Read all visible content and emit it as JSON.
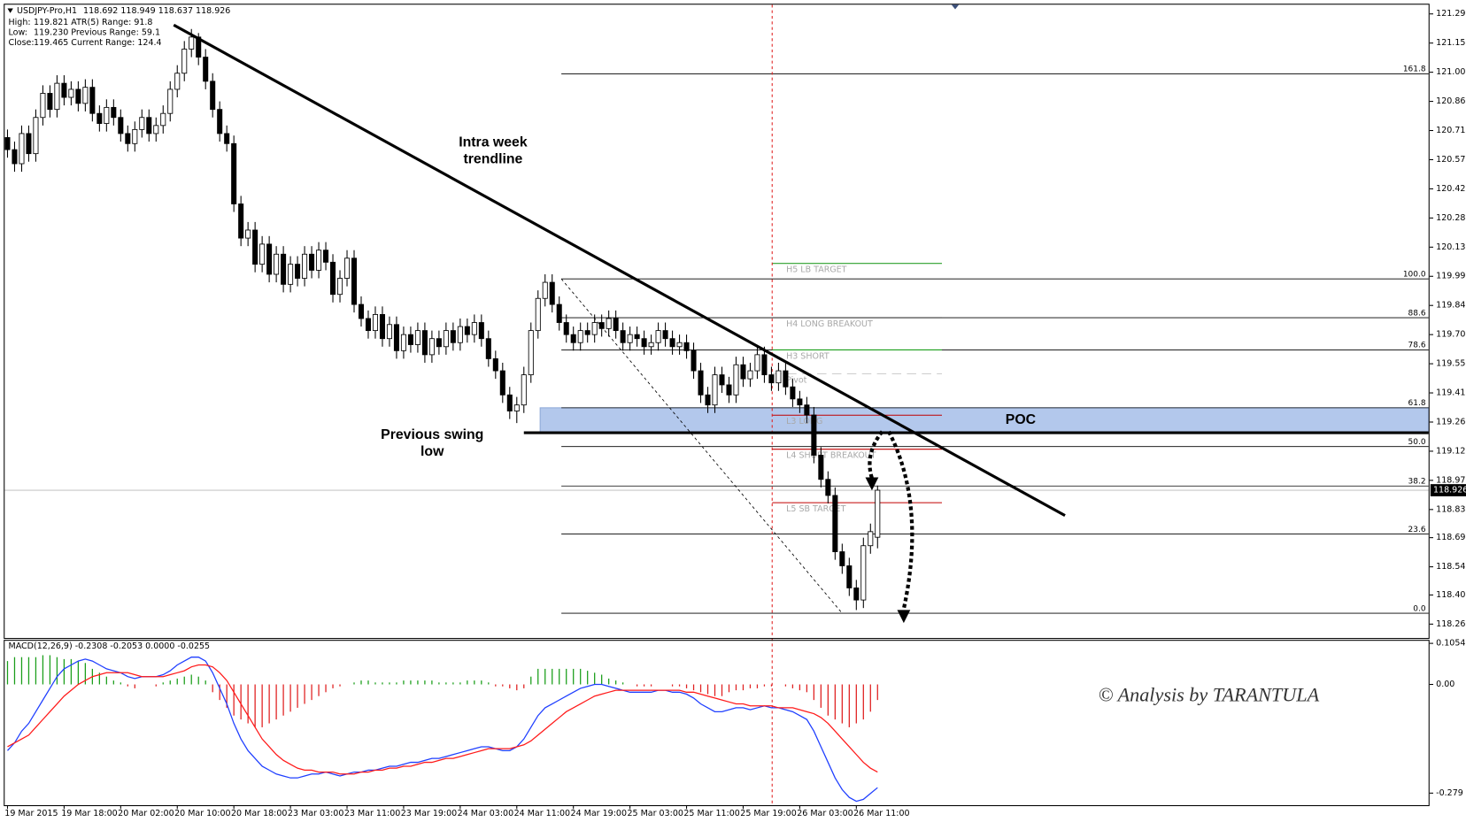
{
  "chart_data": {
    "type": "candlestick",
    "info_header": {
      "symbol": "USDJPY-Pro,H1",
      "ohlc": "118.692 118.949 118.637 118.926"
    },
    "info": [
      {
        "label": "High:",
        "value": "119.821",
        "extra": "ATR(5) Range: 91.8"
      },
      {
        "label": "Low:",
        "value": "119.230",
        "extra": "Previous Range: 59.1"
      },
      {
        "label": "Close:",
        "value": "119.465",
        "extra": "Current Range: 124.4"
      }
    ],
    "categories": [
      "19 Mar 2015",
      null,
      null,
      null,
      null,
      null,
      null,
      null,
      "19 Mar 18:00",
      null,
      null,
      null,
      null,
      null,
      null,
      null,
      "20 Mar 02:00",
      null,
      null,
      null,
      null,
      null,
      null,
      null,
      "20 Mar 10:00",
      null,
      null,
      null,
      null,
      null,
      null,
      null,
      "20 Mar 18:00",
      null,
      null,
      null,
      null,
      null,
      null,
      null,
      "23 Mar 03:00",
      null,
      null,
      null,
      null,
      null,
      null,
      null,
      "23 Mar 11:00",
      null,
      null,
      null,
      null,
      null,
      null,
      null,
      "23 Mar 19:00",
      null,
      null,
      null,
      null,
      null,
      null,
      null,
      "24 Mar 03:00",
      null,
      null,
      null,
      null,
      null,
      null,
      null,
      "24 Mar 11:00",
      null,
      null,
      null,
      null,
      null,
      null,
      null,
      "24 Mar 19:00",
      null,
      null,
      null,
      null,
      null,
      null,
      null,
      "25 Mar 03:00",
      null,
      null,
      null,
      null,
      null,
      null,
      null,
      "25 Mar 11:00",
      null,
      null,
      null,
      null,
      null,
      null,
      null,
      "25 Mar 19:00",
      null,
      null,
      null,
      null,
      null,
      null,
      null,
      "26 Mar 03:00",
      null,
      null,
      null,
      null,
      null,
      null,
      null,
      "26 Mar 11:00",
      null,
      null,
      null
    ],
    "open": [
      120.68,
      120.62,
      120.55,
      120.7,
      120.6,
      120.78,
      120.9,
      120.82,
      120.95,
      120.88,
      120.92,
      120.85,
      120.93,
      120.8,
      120.75,
      120.83,
      120.78,
      120.7,
      120.65,
      120.72,
      120.78,
      120.7,
      120.74,
      120.8,
      120.92,
      121.0,
      121.12,
      121.18,
      121.08,
      120.96,
      120.82,
      120.7,
      120.65,
      120.35,
      120.18,
      120.22,
      120.05,
      120.15,
      120.0,
      120.1,
      119.95,
      120.05,
      119.98,
      120.1,
      120.02,
      120.12,
      120.06,
      119.9,
      119.98,
      120.08,
      119.85,
      119.78,
      119.72,
      119.8,
      119.68,
      119.75,
      119.62,
      119.7,
      119.65,
      119.72,
      119.6,
      119.68,
      119.64,
      119.72,
      119.66,
      119.74,
      119.7,
      119.76,
      119.68,
      119.58,
      119.52,
      119.4,
      119.32,
      119.35,
      119.5,
      119.72,
      119.88,
      119.96,
      119.85,
      119.76,
      119.7,
      119.66,
      119.72,
      119.7,
      119.76,
      119.73,
      119.78,
      119.72,
      119.66,
      119.7,
      119.68,
      119.64,
      119.66,
      119.72,
      119.68,
      119.64,
      119.66,
      119.62,
      119.52,
      119.4,
      119.35,
      119.5,
      119.45,
      119.4,
      119.55,
      119.48,
      119.52,
      119.6,
      119.5,
      119.46,
      119.52,
      119.44,
      119.38,
      119.35,
      119.3,
      119.1,
      118.98,
      118.9,
      118.62,
      118.55,
      118.44,
      118.38,
      118.65,
      118.692
    ],
    "high": [
      120.72,
      120.66,
      120.74,
      120.74,
      120.82,
      120.94,
      120.94,
      120.99,
      120.99,
      120.96,
      120.96,
      120.97,
      120.97,
      120.84,
      120.87,
      120.87,
      120.82,
      120.74,
      120.76,
      120.82,
      120.82,
      120.78,
      120.84,
      120.96,
      121.04,
      121.16,
      121.22,
      121.2,
      121.12,
      121.0,
      120.86,
      120.74,
      120.69,
      120.39,
      120.26,
      120.26,
      120.19,
      120.19,
      120.14,
      120.14,
      120.09,
      120.09,
      120.14,
      120.14,
      120.16,
      120.16,
      120.1,
      120.02,
      120.12,
      120.12,
      119.89,
      119.82,
      119.84,
      119.84,
      119.79,
      119.79,
      119.74,
      119.74,
      119.76,
      119.76,
      119.72,
      119.72,
      119.76,
      119.76,
      119.78,
      119.78,
      119.8,
      119.8,
      119.72,
      119.62,
      119.56,
      119.44,
      119.39,
      119.54,
      119.76,
      119.92,
      120.0,
      120.0,
      119.89,
      119.8,
      119.74,
      119.76,
      119.76,
      119.8,
      119.8,
      119.82,
      119.82,
      119.76,
      119.74,
      119.74,
      119.72,
      119.7,
      119.76,
      119.76,
      119.72,
      119.7,
      119.7,
      119.66,
      119.56,
      119.44,
      119.54,
      119.54,
      119.49,
      119.59,
      119.59,
      119.56,
      119.64,
      119.64,
      119.54,
      119.56,
      119.56,
      119.48,
      119.42,
      119.39,
      119.34,
      119.14,
      119.02,
      118.94,
      118.66,
      118.59,
      118.48,
      118.69,
      118.76,
      118.949
    ],
    "low": [
      120.58,
      120.51,
      120.51,
      120.56,
      120.56,
      120.74,
      120.78,
      120.78,
      120.84,
      120.84,
      120.81,
      120.81,
      120.76,
      120.71,
      120.71,
      120.74,
      120.66,
      120.61,
      120.61,
      120.68,
      120.66,
      120.66,
      120.7,
      120.76,
      120.88,
      120.96,
      121.08,
      121.04,
      120.92,
      120.78,
      120.66,
      120.61,
      120.31,
      120.14,
      120.14,
      120.01,
      120.01,
      119.96,
      119.96,
      119.91,
      119.91,
      119.94,
      119.94,
      119.98,
      119.98,
      120.02,
      119.86,
      119.86,
      119.94,
      119.81,
      119.74,
      119.68,
      119.68,
      119.64,
      119.64,
      119.58,
      119.58,
      119.61,
      119.61,
      119.56,
      119.56,
      119.6,
      119.6,
      119.62,
      119.62,
      119.66,
      119.66,
      119.64,
      119.54,
      119.48,
      119.36,
      119.28,
      119.26,
      119.31,
      119.46,
      119.68,
      119.84,
      119.81,
      119.72,
      119.66,
      119.62,
      119.62,
      119.66,
      119.66,
      119.69,
      119.69,
      119.68,
      119.62,
      119.62,
      119.64,
      119.6,
      119.6,
      119.62,
      119.64,
      119.6,
      119.6,
      119.58,
      119.48,
      119.36,
      119.31,
      119.31,
      119.41,
      119.36,
      119.36,
      119.44,
      119.44,
      119.48,
      119.46,
      119.42,
      119.42,
      119.4,
      119.34,
      119.31,
      119.26,
      119.06,
      118.94,
      118.86,
      118.58,
      118.51,
      118.4,
      118.33,
      118.34,
      118.61,
      118.637
    ],
    "close": [
      120.62,
      120.55,
      120.7,
      120.6,
      120.78,
      120.9,
      120.82,
      120.95,
      120.88,
      120.92,
      120.85,
      120.93,
      120.8,
      120.75,
      120.83,
      120.78,
      120.7,
      120.65,
      120.72,
      120.78,
      120.7,
      120.74,
      120.8,
      120.92,
      121.0,
      121.12,
      121.18,
      121.08,
      120.96,
      120.82,
      120.7,
      120.65,
      120.35,
      120.18,
      120.22,
      120.05,
      120.15,
      120.0,
      120.1,
      119.95,
      120.05,
      119.98,
      120.1,
      120.02,
      120.12,
      120.06,
      119.9,
      119.98,
      120.08,
      119.85,
      119.78,
      119.72,
      119.8,
      119.68,
      119.75,
      119.62,
      119.7,
      119.65,
      119.72,
      119.6,
      119.68,
      119.64,
      119.72,
      119.66,
      119.74,
      119.7,
      119.76,
      119.68,
      119.58,
      119.52,
      119.4,
      119.32,
      119.35,
      119.5,
      119.72,
      119.88,
      119.96,
      119.85,
      119.76,
      119.7,
      119.66,
      119.72,
      119.7,
      119.76,
      119.73,
      119.78,
      119.72,
      119.66,
      119.7,
      119.68,
      119.64,
      119.66,
      119.72,
      119.68,
      119.64,
      119.66,
      119.62,
      119.52,
      119.4,
      119.35,
      119.5,
      119.45,
      119.4,
      119.55,
      119.48,
      119.52,
      119.6,
      119.5,
      119.46,
      119.52,
      119.44,
      119.38,
      119.35,
      119.3,
      119.1,
      118.98,
      118.9,
      118.62,
      118.55,
      118.44,
      118.38,
      118.65,
      118.72,
      118.926
    ],
    "bull_color": "#ffffff",
    "bear_color": "#000000",
    "xlim": [
      -0.4,
      200.9
    ],
    "ylim": [
      118.191,
      121.341
    ],
    "yticks": [
      121.295,
      {
        "value": 121.15,
        "label": "121.150"
      },
      121.005,
      {
        "value": 120.86,
        "label": "120.860"
      },
      120.715,
      {
        "value": 120.57,
        "label": "120.570"
      },
      120.425,
      {
        "value": 120.28,
        "label": "120.280"
      },
      120.135,
      {
        "value": 119.99,
        "label": "119.990"
      },
      119.845,
      {
        "value": 119.7,
        "label": "119.700"
      },
      119.555,
      {
        "value": 119.41,
        "label": "119.410"
      },
      119.265,
      {
        "value": 119.12,
        "label": "119.120"
      },
      118.975,
      {
        "value": 118.83,
        "label": "118.830"
      },
      {
        "value": 118.69,
        "label": "118.690"
      },
      118.545,
      118.405,
      {
        "value": 118.26,
        "label": "118.260"
      }
    ],
    "current_price": 118.926,
    "fib": {
      "levels": [
        {
          "label": "161.8",
          "price": 120.997
        },
        {
          "label": "100.0",
          "price": 119.977
        },
        {
          "label": "88.6",
          "price": 119.784
        },
        {
          "label": "78.6",
          "price": 119.624
        },
        {
          "label": "61.8",
          "price": 119.336
        },
        {
          "label": "50.0",
          "price": 119.143
        },
        {
          "label": "38.2",
          "price": 118.947
        },
        {
          "label": "23.6",
          "price": 118.708
        },
        {
          "label": "0.0",
          "price": 118.314
        }
      ],
      "diagonal": {
        "x": [
          78.3,
          118
        ],
        "y": [
          119.977,
          118.314
        ]
      }
    },
    "pivots": {
      "x": [
        108.1,
        132.1
      ],
      "levels": [
        {
          "label": "H5 LB TARGET",
          "price": 120.054,
          "color": "#2ca02c"
        },
        {
          "label": "H4 LONG BREAKOUT",
          "price": 119.784,
          "color": "#333333"
        },
        {
          "label": "H3 SHORT",
          "price": 119.624,
          "color": "#1a9e1a"
        },
        {
          "label": "Pivot",
          "price": 119.505,
          "color": "#d0d0d0",
          "dashed": true
        },
        {
          "label": "L3 LONG",
          "price": 119.299,
          "color": "#c00000"
        },
        {
          "label": "L4 SHORT BREAKOUT",
          "price": 119.13,
          "color": "#c00000"
        },
        {
          "label": "L5 SB TARGET",
          "price": 118.864,
          "color": "#c00000"
        }
      ]
    },
    "poc": {
      "label": "POC",
      "top": 119.336,
      "bottom": 119.212,
      "x_start": 75.3,
      "color": "#b3c8ec"
    },
    "swing_low": {
      "price": 119.212,
      "x_start": 73
    },
    "trendline": {
      "x": [
        23.5,
        149.5
      ],
      "y": [
        121.24,
        118.8
      ]
    },
    "vline": {
      "x": 108.1,
      "color": "#e02020"
    },
    "annotations": {
      "trendline": [
        "Intra week",
        "trendline"
      ],
      "swing_low": [
        "Previous swing",
        "low"
      ],
      "watermark": "© Analysis by TARANTULA"
    },
    "macd": {
      "title": "MACD(12,26,9) -0.2308 -0.2053 0.0000 -0.0255",
      "ylim": [
        -0.31,
        0.112
      ],
      "yticks": [
        0.1054,
        {
          "value": 0,
          "label": "0.00"
        },
        -0.279
      ],
      "pos_color": "#1a9e1a",
      "neg_color": "#e02020",
      "histogram": [
        0.06,
        0.07,
        0.07,
        0.07,
        0.07,
        0.075,
        0.075,
        0.07,
        0.065,
        0.065,
        0.06,
        0.055,
        0.04,
        0.03,
        0.02,
        0.01,
        0.005,
        -0.005,
        -0.01,
        0.0,
        0.0,
        -0.005,
        0.005,
        0.01,
        0.015,
        0.02,
        0.025,
        0.02,
        0.01,
        -0.02,
        -0.04,
        -0.06,
        -0.08,
        -0.09,
        -0.1,
        -0.11,
        -0.11,
        -0.1,
        -0.09,
        -0.08,
        -0.07,
        -0.06,
        -0.05,
        -0.04,
        -0.03,
        -0.02,
        -0.01,
        -0.005,
        0.0,
        0.005,
        0.01,
        0.01,
        0.005,
        0.005,
        0.005,
        0.005,
        0.01,
        0.01,
        0.01,
        0.01,
        0.01,
        0.005,
        0.005,
        0.005,
        0.005,
        0.01,
        0.01,
        0.01,
        0.005,
        -0.005,
        -0.005,
        -0.01,
        -0.015,
        -0.01,
        0.02,
        0.04,
        0.04,
        0.04,
        0.04,
        0.04,
        0.04,
        0.04,
        0.035,
        0.03,
        0.025,
        0.015,
        0.01,
        0.005,
        0.0,
        -0.005,
        -0.005,
        -0.005,
        0.0,
        0.0,
        -0.005,
        -0.005,
        -0.01,
        -0.015,
        -0.02,
        -0.025,
        -0.03,
        -0.03,
        -0.02,
        -0.015,
        -0.015,
        -0.01,
        -0.01,
        -0.005,
        -0.005,
        0.0,
        -0.005,
        -0.01,
        -0.015,
        -0.02,
        -0.04,
        -0.06,
        -0.08,
        -0.09,
        -0.1,
        -0.11,
        -0.1,
        -0.09,
        -0.07,
        -0.04
      ],
      "series": [
        {
          "color": "#1f3fff",
          "values": [
            -0.17,
            -0.15,
            -0.12,
            -0.1,
            -0.07,
            -0.04,
            -0.01,
            0.02,
            0.04,
            0.05,
            0.06,
            0.065,
            0.06,
            0.05,
            0.04,
            0.035,
            0.03,
            0.02,
            0.015,
            0.02,
            0.02,
            0.02,
            0.025,
            0.035,
            0.05,
            0.06,
            0.07,
            0.07,
            0.06,
            0.03,
            -0.01,
            -0.05,
            -0.1,
            -0.14,
            -0.17,
            -0.19,
            -0.21,
            -0.22,
            -0.23,
            -0.235,
            -0.24,
            -0.24,
            -0.235,
            -0.23,
            -0.23,
            -0.225,
            -0.23,
            -0.235,
            -0.23,
            -0.225,
            -0.225,
            -0.22,
            -0.22,
            -0.215,
            -0.21,
            -0.21,
            -0.205,
            -0.2,
            -0.2,
            -0.195,
            -0.19,
            -0.19,
            -0.185,
            -0.18,
            -0.175,
            -0.17,
            -0.165,
            -0.16,
            -0.16,
            -0.165,
            -0.17,
            -0.17,
            -0.16,
            -0.14,
            -0.11,
            -0.08,
            -0.06,
            -0.05,
            -0.04,
            -0.03,
            -0.02,
            -0.01,
            -0.005,
            0.0,
            0.0,
            -0.005,
            -0.01,
            -0.015,
            -0.02,
            -0.02,
            -0.02,
            -0.02,
            -0.015,
            -0.015,
            -0.02,
            -0.02,
            -0.025,
            -0.035,
            -0.05,
            -0.06,
            -0.07,
            -0.07,
            -0.065,
            -0.06,
            -0.06,
            -0.065,
            -0.06,
            -0.055,
            -0.06,
            -0.06,
            -0.065,
            -0.07,
            -0.08,
            -0.09,
            -0.12,
            -0.16,
            -0.2,
            -0.24,
            -0.27,
            -0.29,
            -0.3,
            -0.295,
            -0.28,
            -0.265
          ]
        },
        {
          "color": "#ff1a1a",
          "values": [
            -0.16,
            -0.15,
            -0.14,
            -0.13,
            -0.11,
            -0.09,
            -0.07,
            -0.05,
            -0.03,
            -0.015,
            0.0,
            0.01,
            0.02,
            0.025,
            0.03,
            0.03,
            0.03,
            0.03,
            0.025,
            0.02,
            0.02,
            0.02,
            0.02,
            0.025,
            0.03,
            0.035,
            0.045,
            0.05,
            0.05,
            0.045,
            0.03,
            0.01,
            -0.02,
            -0.05,
            -0.08,
            -0.11,
            -0.14,
            -0.16,
            -0.18,
            -0.195,
            -0.205,
            -0.215,
            -0.22,
            -0.22,
            -0.225,
            -0.225,
            -0.225,
            -0.23,
            -0.23,
            -0.23,
            -0.225,
            -0.225,
            -0.22,
            -0.22,
            -0.215,
            -0.215,
            -0.21,
            -0.21,
            -0.205,
            -0.2,
            -0.2,
            -0.195,
            -0.19,
            -0.19,
            -0.185,
            -0.18,
            -0.175,
            -0.17,
            -0.165,
            -0.165,
            -0.165,
            -0.165,
            -0.16,
            -0.155,
            -0.145,
            -0.13,
            -0.115,
            -0.1,
            -0.085,
            -0.07,
            -0.06,
            -0.05,
            -0.04,
            -0.03,
            -0.025,
            -0.02,
            -0.015,
            -0.015,
            -0.015,
            -0.015,
            -0.015,
            -0.015,
            -0.015,
            -0.015,
            -0.015,
            -0.015,
            -0.02,
            -0.02,
            -0.025,
            -0.03,
            -0.035,
            -0.04,
            -0.045,
            -0.05,
            -0.05,
            -0.055,
            -0.055,
            -0.055,
            -0.055,
            -0.06,
            -0.06,
            -0.06,
            -0.065,
            -0.07,
            -0.075,
            -0.085,
            -0.1,
            -0.12,
            -0.14,
            -0.16,
            -0.18,
            -0.2,
            -0.215,
            -0.225
          ]
        }
      ]
    }
  }
}
